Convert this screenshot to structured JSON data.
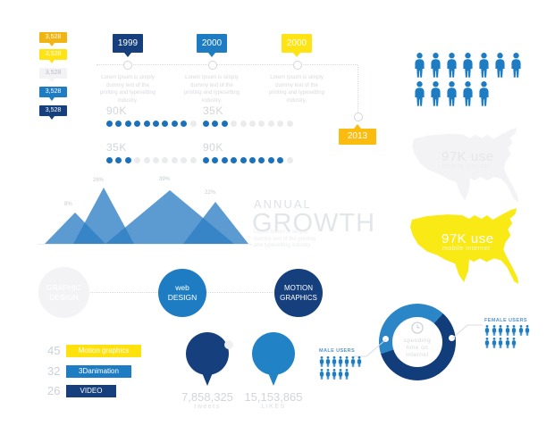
{
  "colors": {
    "navy": "#153f7d",
    "blue": "#1e7dc2",
    "yellow": "#ffe312",
    "amber": "#f0b513",
    "map_yellow": "#f9ea16",
    "gray_fill": "#f3f3f5",
    "dot_on": "#1b72ba",
    "dot_off": "#e9ebed"
  },
  "stat_tags": {
    "values": [
      "3,528",
      "3,528",
      "3,528",
      "3,528",
      "3,528"
    ]
  },
  "timeline": {
    "milestones": [
      {
        "year": "1999",
        "desc": "Lorem Ipsum is simply dummy text of the printing and typesetting industry."
      },
      {
        "year": "2000",
        "desc": "Lorem Ipsum is simply dummy text of the printing and typesetting industry."
      },
      {
        "year": "2000",
        "desc": "Lorem Ipsum is simply dummy text of the printing and typesetting industry."
      },
      {
        "year": "2013"
      }
    ]
  },
  "dot_meters": [
    {
      "label": "90K",
      "filled": 9,
      "total": 10
    },
    {
      "label": "35K",
      "filled": 3,
      "total": 10
    },
    {
      "label": "35K",
      "filled": 3,
      "total": 10
    },
    {
      "label": "90K",
      "filled": 9,
      "total": 10
    }
  ],
  "mountain": {
    "labels": [
      "8%",
      "26%",
      "39%",
      "22%"
    ]
  },
  "growth": {
    "kicker": "ANNUAL",
    "title": "GROWTH",
    "desc": "Lorem Ipsum is simply dummy text of the printing and typesetting industry."
  },
  "audience": {
    "rows": [
      7,
      5
    ]
  },
  "maps": [
    {
      "value": "97K use",
      "label": "mobile internet"
    },
    {
      "value": "97K use",
      "label": "mobile internet"
    }
  ],
  "services": [
    {
      "line1": "GRAPHIC",
      "line2": "DESIGN"
    },
    {
      "line1": "web",
      "line2": "DESIGN"
    },
    {
      "line1": "MOTION",
      "line2": "GRAPHICS"
    }
  ],
  "skills": [
    {
      "value": "45",
      "label": "Motion graphics"
    },
    {
      "value": "32",
      "label": "3Danimation"
    },
    {
      "value": "26",
      "label": "VIDEO"
    }
  ],
  "social": [
    {
      "value": "7,858,325",
      "label": "tweets"
    },
    {
      "value": "15,153,865",
      "label": "LIKES"
    }
  ],
  "donut": {
    "center_lines": [
      "spending",
      "time on",
      "internet"
    ],
    "male_label": "MALE USERS",
    "female_label": "FEMALE USERS",
    "male_rows": [
      7,
      5
    ],
    "female_rows": [
      7,
      5
    ],
    "male_pct": 63,
    "female_pct": 37
  },
  "chart_data": [
    {
      "type": "area",
      "subtype": "overlapping-triangle-peaks",
      "title": "ANNUAL GROWTH",
      "values": [
        8,
        26,
        39,
        22
      ],
      "unit": "%",
      "legend": "none",
      "notes": "four overlapping semi-transparent blue triangles over a light baseline"
    },
    {
      "type": "bar",
      "subtype": "dot-progress",
      "categories": [
        "90K",
        "35K",
        "35K",
        "90K"
      ],
      "values": [
        9,
        3,
        3,
        9
      ],
      "max": 10
    },
    {
      "type": "pie",
      "subtype": "donut",
      "title": "spending time on internet",
      "series": [
        {
          "name": "MALE USERS",
          "value": 63
        },
        {
          "name": "FEMALE USERS",
          "value": 37
        }
      ],
      "unit": "%",
      "legend_position": "sides-with-pictographs"
    },
    {
      "type": "bar",
      "subtype": "labeled-tags",
      "categories": [
        "Motion graphics",
        "3Danimation",
        "VIDEO"
      ],
      "values": [
        45,
        32,
        26
      ]
    },
    {
      "type": "pictograph",
      "subtype": "people-grid",
      "value": 12,
      "rows": [
        7,
        5
      ]
    },
    {
      "type": "map",
      "region": "USA",
      "value": "97K use",
      "label": "mobile internet",
      "instances": 2
    }
  ]
}
